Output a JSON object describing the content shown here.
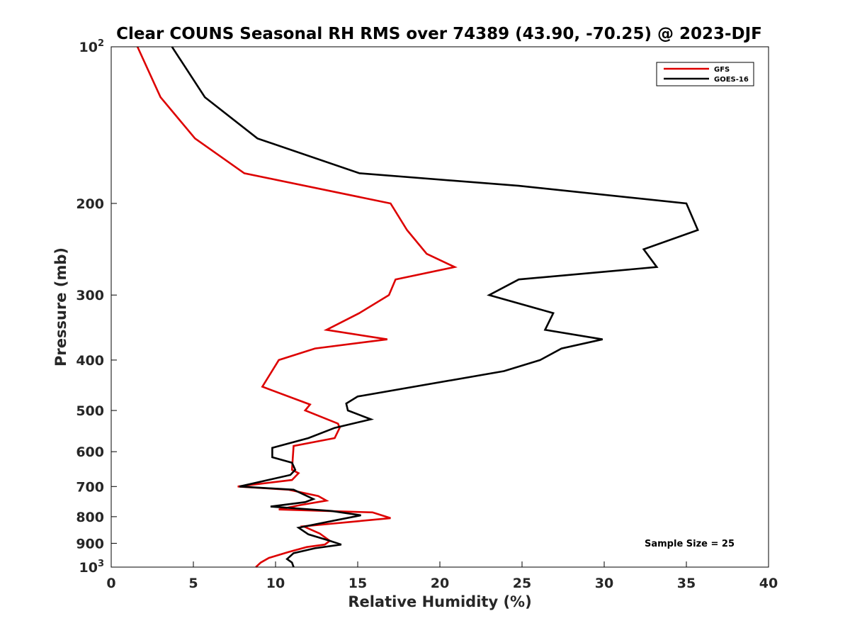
{
  "chart_data": {
    "type": "line",
    "title": "Clear COUNS Seasonal RH RMS over 74389 (43.90, -70.25) @ 2023-DJF",
    "xlabel": "Relative Humidity (%)",
    "ylabel": "Pressure (mb)",
    "xlim": [
      0,
      40
    ],
    "ylim": [
      100,
      1000
    ],
    "yscale": "log",
    "y_reversed": true,
    "xticks": [
      0,
      5,
      10,
      15,
      20,
      25,
      30,
      35,
      40
    ],
    "xtick_labels": [
      "0",
      "5",
      "10",
      "15",
      "20",
      "25",
      "30",
      "35",
      "40"
    ],
    "yticks": [
      100,
      200,
      300,
      400,
      500,
      600,
      700,
      800,
      900,
      1000
    ],
    "ytick_labels": [
      {
        "base": "10",
        "exp": "2"
      },
      {
        "base": "200",
        "exp": ""
      },
      {
        "base": "300",
        "exp": ""
      },
      {
        "base": "400",
        "exp": ""
      },
      {
        "base": "500",
        "exp": ""
      },
      {
        "base": "600",
        "exp": ""
      },
      {
        "base": "700",
        "exp": ""
      },
      {
        "base": "800",
        "exp": ""
      },
      {
        "base": "900",
        "exp": ""
      },
      {
        "base": "10",
        "exp": "3"
      }
    ],
    "legend_position": "top-right",
    "annotation": "Sample Size = 25",
    "series": [
      {
        "name": "GFS",
        "color": "#dd0000",
        "points": [
          [
            1.6,
            100
          ],
          [
            3.0,
            125
          ],
          [
            5.1,
            150
          ],
          [
            8.1,
            175
          ],
          [
            17.0,
            200
          ],
          [
            18.0,
            225
          ],
          [
            19.2,
            250
          ],
          [
            20.9,
            265
          ],
          [
            17.3,
            280
          ],
          [
            16.9,
            300
          ],
          [
            15.1,
            325
          ],
          [
            13.1,
            350
          ],
          [
            16.8,
            365
          ],
          [
            12.4,
            380
          ],
          [
            10.2,
            400
          ],
          [
            9.2,
            450
          ],
          [
            12.1,
            487
          ],
          [
            11.8,
            500
          ],
          [
            13.8,
            530
          ],
          [
            13.9,
            540
          ],
          [
            13.6,
            565
          ],
          [
            11.1,
            585
          ],
          [
            11.0,
            650
          ],
          [
            11.4,
            660
          ],
          [
            11.0,
            680
          ],
          [
            7.7,
            700
          ],
          [
            10.8,
            710
          ],
          [
            12.6,
            730
          ],
          [
            13.1,
            745
          ],
          [
            11.5,
            760
          ],
          [
            10.2,
            775
          ],
          [
            15.9,
            785
          ],
          [
            17.0,
            805
          ],
          [
            11.7,
            835
          ],
          [
            12.7,
            862
          ],
          [
            13.3,
            890
          ],
          [
            13.0,
            905
          ],
          [
            11.9,
            915
          ],
          [
            10.8,
            935
          ],
          [
            9.6,
            960
          ],
          [
            9.1,
            980
          ],
          [
            8.8,
            1000
          ]
        ]
      },
      {
        "name": "GOES-16",
        "color": "#000000",
        "points": [
          [
            3.7,
            100
          ],
          [
            5.7,
            125
          ],
          [
            8.9,
            150
          ],
          [
            15.1,
            175
          ],
          [
            24.8,
            185
          ],
          [
            35.0,
            200
          ],
          [
            35.7,
            225
          ],
          [
            32.4,
            245
          ],
          [
            33.2,
            265
          ],
          [
            24.8,
            280
          ],
          [
            23.0,
            300
          ],
          [
            26.9,
            325
          ],
          [
            26.4,
            350
          ],
          [
            29.9,
            365
          ],
          [
            27.4,
            380
          ],
          [
            26.1,
            400
          ],
          [
            23.9,
            420
          ],
          [
            15.0,
            470
          ],
          [
            14.3,
            485
          ],
          [
            14.4,
            500
          ],
          [
            15.8,
            520
          ],
          [
            13.6,
            540
          ],
          [
            12.0,
            565
          ],
          [
            9.8,
            590
          ],
          [
            9.8,
            615
          ],
          [
            11.0,
            630
          ],
          [
            11.2,
            650
          ],
          [
            10.9,
            665
          ],
          [
            7.8,
            700
          ],
          [
            11.1,
            710
          ],
          [
            12.3,
            740
          ],
          [
            11.8,
            750
          ],
          [
            9.7,
            765
          ],
          [
            13.4,
            780
          ],
          [
            15.2,
            795
          ],
          [
            13.9,
            810
          ],
          [
            11.4,
            840
          ],
          [
            12.0,
            865
          ],
          [
            13.3,
            890
          ],
          [
            14.0,
            905
          ],
          [
            12.4,
            920
          ],
          [
            11.1,
            940
          ],
          [
            10.7,
            965
          ],
          [
            11.0,
            980
          ],
          [
            11.1,
            1000
          ]
        ]
      }
    ]
  }
}
